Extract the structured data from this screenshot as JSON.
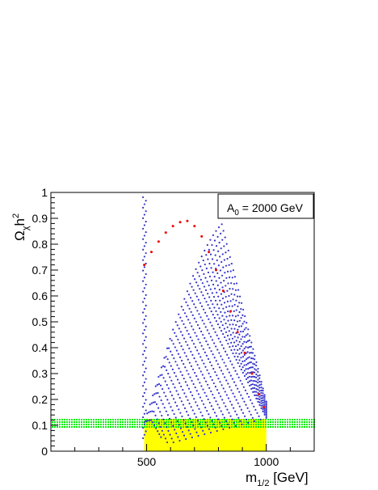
{
  "chart_data": {
    "type": "scatter",
    "title": "",
    "annotation": {
      "main": "A",
      "sub": "0",
      "rest": " = 2000 GeV"
    },
    "xlabel": {
      "main": "m",
      "sub": "1/2",
      "rest": " [GeV]"
    },
    "ylabel": {
      "main": "Ω",
      "sub": "χ",
      "rest": "h",
      "sup": "2"
    },
    "xlim": [
      100,
      1200
    ],
    "ylim": [
      0,
      1
    ],
    "x_ticks": [
      500,
      1000
    ],
    "y_ticks": [
      0,
      0.1,
      0.2,
      0.3,
      0.4,
      0.5,
      0.6,
      0.7,
      0.8,
      0.9,
      1
    ],
    "y_tick_labels": [
      "0",
      "0.1",
      "0.2",
      "0.3",
      "0.4",
      "0.5",
      "0.6",
      "0.7",
      "0.8",
      "0.9",
      "1"
    ],
    "bands": [
      {
        "kind": "green_band",
        "y_range": [
          0.095,
          0.125
        ],
        "color": "#00ee00"
      },
      {
        "kind": "yellow_region",
        "x_range": [
          490,
          1000
        ],
        "y_range": [
          0,
          0.125
        ],
        "color": "#ffff00"
      }
    ],
    "series": [
      {
        "color": "#3333cc",
        "x_range": [
          480,
          1000
        ],
        "values_note": "blue scan points forming arc-shaped curves"
      },
      {
        "color": "#ee0000",
        "points": [
          [
            490,
            0.72
          ],
          [
            520,
            0.77
          ],
          [
            550,
            0.81
          ],
          [
            580,
            0.845
          ],
          [
            610,
            0.87
          ],
          [
            640,
            0.885
          ],
          [
            670,
            0.89
          ],
          [
            700,
            0.87
          ],
          [
            730,
            0.83
          ],
          [
            760,
            0.77
          ],
          [
            790,
            0.7
          ],
          [
            820,
            0.62
          ],
          [
            850,
            0.54
          ],
          [
            880,
            0.46
          ],
          [
            910,
            0.38
          ],
          [
            940,
            0.3
          ],
          [
            970,
            0.22
          ],
          [
            990,
            0.17
          ]
        ]
      }
    ],
    "grid": false,
    "legend": "top-right"
  }
}
